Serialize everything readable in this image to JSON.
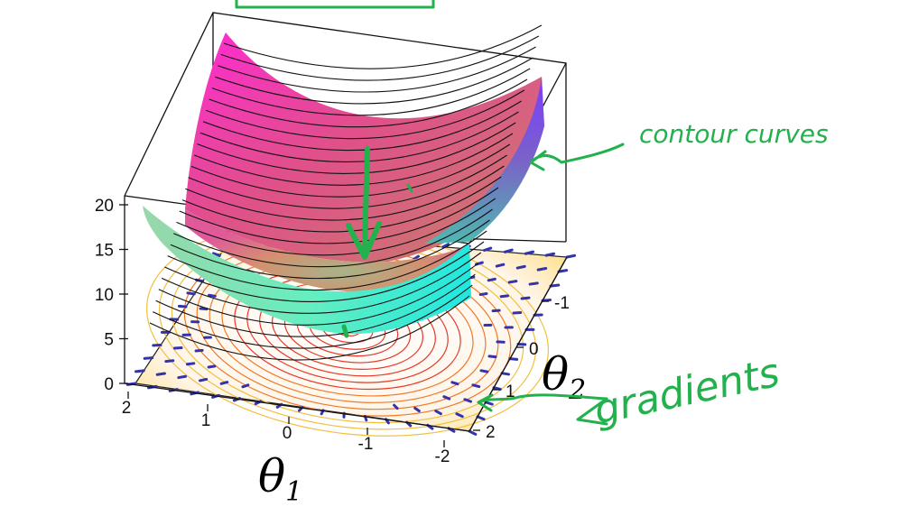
{
  "figure": {
    "z_ticks": [
      "20",
      "15",
      "10",
      "5",
      "0"
    ],
    "x_ticks": [
      "2",
      "1",
      "0",
      "-1",
      "-2"
    ],
    "y_ticks": [
      "-1",
      "0",
      "1",
      "2"
    ],
    "x_axis_symbol": "θ",
    "x_axis_subscript": "1",
    "y_axis_symbol": "θ",
    "y_axis_subscript": "2"
  },
  "annotations": {
    "contour_label": "contour curves",
    "gradient_label": "gradients",
    "ink_color": "#22b14c"
  },
  "colors": {
    "surface_top": "#ff33cc",
    "surface_mid": "#d98a80",
    "surface_low": "#b5b08a",
    "surface_front": "#5cf0c8",
    "surface_right": "#6a4cf0",
    "contour_floor": "#e8382a",
    "gradient_dots": "#3333aa"
  }
}
